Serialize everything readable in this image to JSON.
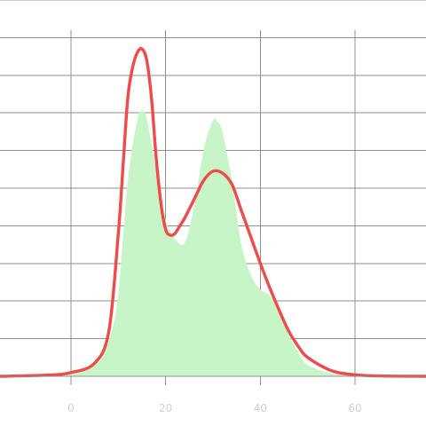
{
  "chart_data": {
    "type": "area",
    "title": "",
    "xlabel": "",
    "ylabel": "",
    "xlim": [
      -15,
      75
    ],
    "ylim": [
      0,
      1
    ],
    "grid": true,
    "legend": "none",
    "x_ticks": [
      0,
      20,
      40,
      60
    ],
    "x_tick_labels": [
      "0",
      "20",
      "40",
      "60"
    ],
    "y_gridlines": [
      0.1,
      0.2,
      0.3,
      0.4,
      0.5,
      0.6,
      0.7,
      0.8,
      0.9,
      1.0
    ],
    "series": [
      {
        "type": "area",
        "color": "#c8f5c8",
        "x": [
          -15,
          -5,
          0,
          5,
          8,
          10,
          12,
          14,
          15,
          16,
          18,
          20,
          22,
          24,
          26,
          28,
          30,
          31,
          32,
          34,
          36,
          38,
          40,
          42,
          44,
          46,
          48,
          50,
          55,
          60,
          65,
          75
        ],
        "y": [
          0.0,
          0.005,
          0.012,
          0.033,
          0.095,
          0.22,
          0.52,
          0.68,
          0.705,
          0.685,
          0.55,
          0.415,
          0.365,
          0.355,
          0.45,
          0.6,
          0.68,
          0.675,
          0.65,
          0.52,
          0.35,
          0.27,
          0.23,
          0.215,
          0.17,
          0.11,
          0.065,
          0.03,
          0.008,
          0.002,
          0.0,
          0.0
        ]
      },
      {
        "type": "line",
        "color": "#f04a4a",
        "x": [
          -15,
          -5,
          0,
          5,
          8,
          10,
          11,
          12,
          13,
          14,
          15,
          16,
          17,
          18,
          19,
          20,
          21,
          22,
          23,
          24,
          26,
          28,
          30,
          32,
          34,
          36,
          38,
          40,
          42,
          44,
          46,
          48,
          50,
          55,
          60,
          65,
          75
        ],
        "y": [
          0.0,
          0.003,
          0.01,
          0.035,
          0.12,
          0.38,
          0.56,
          0.74,
          0.82,
          0.86,
          0.87,
          0.84,
          0.74,
          0.58,
          0.46,
          0.39,
          0.375,
          0.38,
          0.4,
          0.42,
          0.47,
          0.52,
          0.545,
          0.54,
          0.51,
          0.44,
          0.37,
          0.3,
          0.235,
          0.175,
          0.12,
          0.08,
          0.05,
          0.015,
          0.004,
          0.001,
          0.0
        ]
      }
    ]
  }
}
